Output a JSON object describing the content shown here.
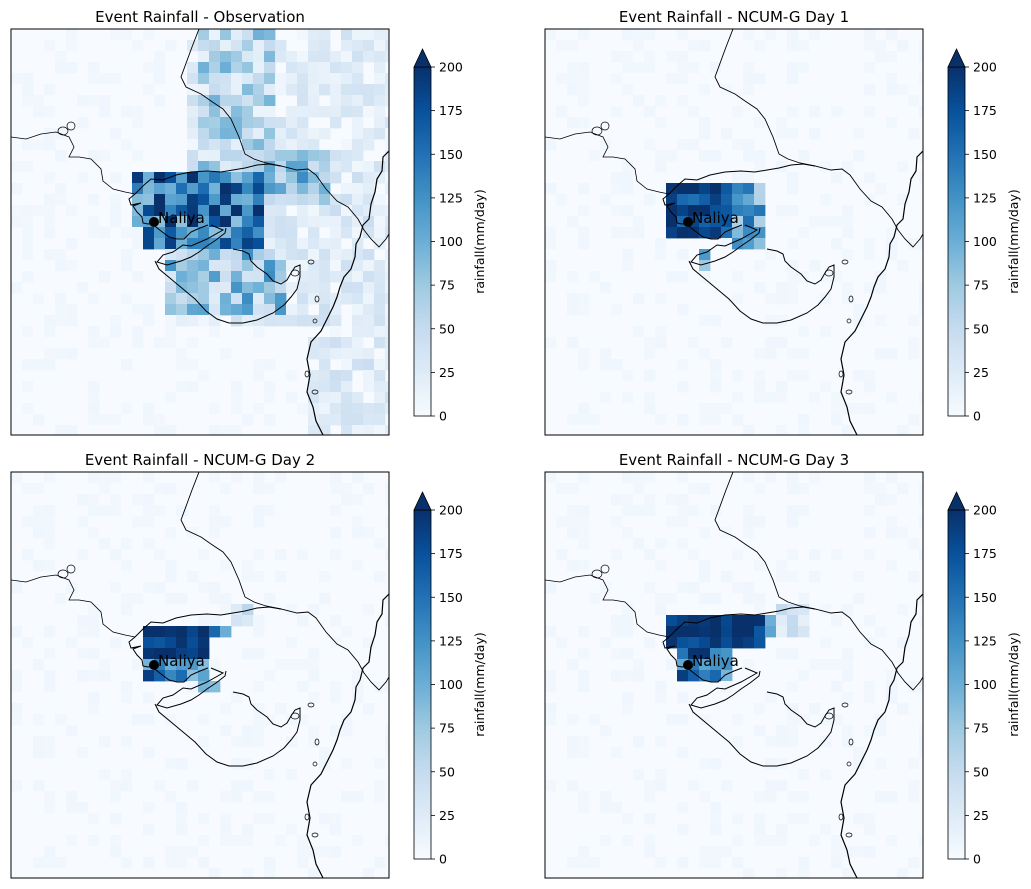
{
  "chart_data": [
    {
      "type": "heatmap",
      "title": "Event Rainfall - Observation",
      "colorbar": {
        "label": "rainfall(mm/day)",
        "ticks": [
          0,
          25,
          50,
          75,
          100,
          125,
          150,
          175,
          200
        ],
        "range": [
          0,
          200
        ],
        "extend": "max",
        "colormap": "Blues"
      },
      "annotation": {
        "text": "Naliya",
        "marker": "circle"
      },
      "pattern": "obs",
      "grid": false
    },
    {
      "type": "heatmap",
      "title": "Event Rainfall - NCUM-G Day 1",
      "colorbar": {
        "label": "rainfall(mm/day)",
        "ticks": [
          0,
          25,
          50,
          75,
          100,
          125,
          150,
          175,
          200
        ],
        "range": [
          0,
          200
        ],
        "extend": "max",
        "colormap": "Blues"
      },
      "annotation": {
        "text": "Naliya",
        "marker": "circle"
      },
      "pattern": "day1",
      "grid": false
    },
    {
      "type": "heatmap",
      "title": "Event Rainfall - NCUM-G Day 2",
      "colorbar": {
        "label": "rainfall(mm/day)",
        "ticks": [
          0,
          25,
          50,
          75,
          100,
          125,
          150,
          175,
          200
        ],
        "range": [
          0,
          200
        ],
        "extend": "max",
        "colormap": "Blues"
      },
      "annotation": {
        "text": "Naliya",
        "marker": "circle"
      },
      "pattern": "day2",
      "grid": false
    },
    {
      "type": "heatmap",
      "title": "Event Rainfall - NCUM-G Day 3",
      "colorbar": {
        "label": "rainfall(mm/day)",
        "ticks": [
          0,
          25,
          50,
          75,
          100,
          125,
          150,
          175,
          200
        ],
        "range": [
          0,
          200
        ],
        "extend": "max",
        "colormap": "Blues"
      },
      "annotation": {
        "text": "Naliya",
        "marker": "circle"
      },
      "pattern": "day3",
      "grid": false
    }
  ]
}
